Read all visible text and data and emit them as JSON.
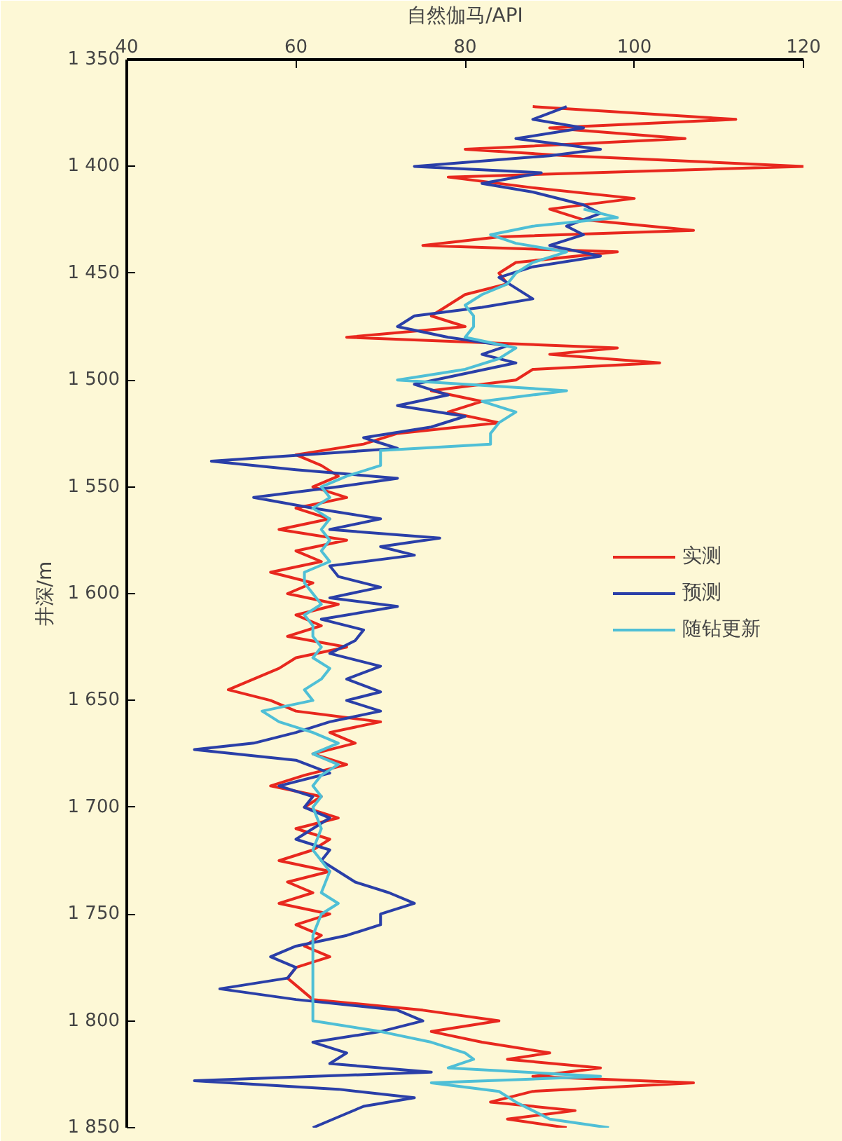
{
  "chart_data": {
    "type": "line",
    "xlabel": "自然伽马/API",
    "ylabel": "井深/m",
    "xlim": [
      40,
      120
    ],
    "xticks": [
      40,
      60,
      80,
      100,
      120
    ],
    "ylim": [
      1850,
      1350
    ],
    "yticks": [
      {
        "value": 1350,
        "label": "1 350"
      },
      {
        "value": 1400,
        "label": "1 400"
      },
      {
        "value": 1450,
        "label": "1 450"
      },
      {
        "value": 1500,
        "label": "1 500"
      },
      {
        "value": 1550,
        "label": "1 550"
      },
      {
        "value": 1600,
        "label": "1 600"
      },
      {
        "value": 1650,
        "label": "1 650"
      },
      {
        "value": 1700,
        "label": "1 700"
      },
      {
        "value": 1750,
        "label": "1 750"
      },
      {
        "value": 1800,
        "label": "1 800"
      },
      {
        "value": 1850,
        "label": "1 850"
      }
    ],
    "grid": false,
    "legend": "right",
    "marker": "none",
    "line_style": "solid",
    "series": [
      {
        "name": "实测",
        "color": "#e8281e",
        "x": [
          88,
          112,
          90,
          106,
          80,
          92,
          120,
          95,
          78,
          88,
          100,
          90,
          94,
          107,
          84,
          75,
          98,
          86,
          84,
          85,
          80,
          78,
          76,
          80,
          66,
          98,
          90,
          103,
          88,
          86,
          76,
          82,
          78,
          84,
          72,
          68,
          60,
          63,
          65,
          62,
          66,
          60,
          64,
          58,
          66,
          60,
          63,
          57,
          62,
          59,
          65,
          60,
          63,
          59,
          66,
          60,
          58,
          55,
          52,
          57,
          60,
          70,
          64,
          67,
          62,
          66,
          61,
          57,
          63,
          61,
          65,
          60,
          64,
          62,
          58,
          64,
          59,
          62,
          58,
          64,
          60,
          63,
          61,
          64,
          60,
          59,
          62,
          75,
          84,
          76,
          82,
          90,
          85,
          96,
          88,
          107,
          88,
          83,
          93,
          85,
          92
        ],
        "values": [
          1372,
          1378,
          1382,
          1387,
          1392,
          1395,
          1400,
          1403,
          1405,
          1410,
          1415,
          1420,
          1425,
          1430,
          1433,
          1437,
          1440,
          1445,
          1450,
          1455,
          1460,
          1465,
          1470,
          1475,
          1480,
          1485,
          1488,
          1492,
          1495,
          1500,
          1505,
          1510,
          1515,
          1520,
          1525,
          1530,
          1535,
          1540,
          1545,
          1550,
          1555,
          1560,
          1565,
          1570,
          1575,
          1580,
          1585,
          1590,
          1595,
          1600,
          1605,
          1610,
          1615,
          1620,
          1625,
          1630,
          1635,
          1640,
          1645,
          1650,
          1655,
          1660,
          1665,
          1670,
          1675,
          1680,
          1685,
          1690,
          1695,
          1700,
          1705,
          1710,
          1715,
          1720,
          1725,
          1730,
          1735,
          1740,
          1745,
          1750,
          1755,
          1760,
          1765,
          1770,
          1775,
          1780,
          1790,
          1795,
          1800,
          1805,
          1810,
          1815,
          1818,
          1822,
          1826,
          1829,
          1833,
          1838,
          1842,
          1846,
          1850
        ]
      },
      {
        "name": "预测",
        "color": "#2a3fa8",
        "x": [
          92,
          88,
          94,
          86,
          96,
          90,
          74,
          89,
          82,
          88,
          94,
          96,
          92,
          94,
          90,
          96,
          88,
          84,
          86,
          88,
          82,
          74,
          72,
          78,
          85,
          82,
          86,
          80,
          74,
          78,
          72,
          80,
          76,
          68,
          72,
          50,
          60,
          72,
          65,
          55,
          62,
          70,
          64,
          77,
          70,
          74,
          64,
          65,
          70,
          64,
          72,
          63,
          68,
          67,
          64,
          70,
          66,
          70,
          66,
          70,
          64,
          60,
          55,
          48,
          60,
          64,
          58,
          62,
          61,
          64,
          62,
          60,
          64,
          63,
          65,
          67,
          71,
          74,
          70,
          70,
          66,
          60,
          57,
          60,
          59,
          51,
          60,
          72,
          75,
          70,
          62,
          66,
          64,
          76,
          48,
          65,
          74,
          68,
          65,
          62
        ],
        "values": [
          1372,
          1378,
          1382,
          1387,
          1392,
          1395,
          1400,
          1403,
          1408,
          1412,
          1418,
          1422,
          1428,
          1432,
          1437,
          1442,
          1447,
          1452,
          1457,
          1462,
          1466,
          1470,
          1475,
          1480,
          1484,
          1488,
          1492,
          1497,
          1502,
          1507,
          1512,
          1517,
          1522,
          1527,
          1532,
          1538,
          1542,
          1546,
          1550,
          1555,
          1560,
          1565,
          1570,
          1574,
          1578,
          1582,
          1587,
          1592,
          1597,
          1602,
          1606,
          1612,
          1617,
          1622,
          1628,
          1634,
          1640,
          1646,
          1650,
          1655,
          1660,
          1665,
          1670,
          1673,
          1678,
          1684,
          1690,
          1695,
          1700,
          1705,
          1710,
          1715,
          1720,
          1725,
          1730,
          1735,
          1740,
          1745,
          1750,
          1755,
          1760,
          1765,
          1770,
          1775,
          1780,
          1785,
          1790,
          1795,
          1800,
          1805,
          1810,
          1815,
          1820,
          1824,
          1828,
          1832,
          1836,
          1840,
          1845,
          1850
        ]
      },
      {
        "name": "随钻更新",
        "color": "#4fbfd6",
        "x": [
          94,
          98,
          88,
          83,
          86,
          92,
          88,
          86,
          85,
          82,
          80,
          81,
          81,
          80,
          86,
          84,
          80,
          72,
          92,
          82,
          86,
          84,
          83,
          83,
          70,
          70,
          66,
          63,
          64,
          62,
          64,
          63,
          64,
          63,
          64,
          61,
          61,
          62,
          63,
          61,
          62,
          62,
          63,
          62,
          64,
          63,
          61,
          62,
          56,
          58,
          62,
          65,
          62,
          65,
          63,
          62,
          63,
          62,
          63,
          62,
          64,
          63,
          65,
          63,
          62,
          62,
          62,
          62,
          62,
          70,
          76,
          80,
          81,
          78,
          96,
          76,
          84,
          86,
          88,
          90,
          97
        ],
        "values": [
          1420,
          1424,
          1428,
          1432,
          1436,
          1440,
          1445,
          1450,
          1455,
          1460,
          1465,
          1470,
          1475,
          1480,
          1485,
          1490,
          1495,
          1500,
          1505,
          1510,
          1515,
          1520,
          1525,
          1530,
          1533,
          1540,
          1545,
          1550,
          1555,
          1560,
          1565,
          1570,
          1575,
          1580,
          1585,
          1590,
          1595,
          1600,
          1605,
          1610,
          1615,
          1620,
          1625,
          1630,
          1635,
          1640,
          1645,
          1650,
          1655,
          1660,
          1665,
          1670,
          1675,
          1680,
          1685,
          1690,
          1695,
          1700,
          1710,
          1720,
          1730,
          1740,
          1745,
          1750,
          1760,
          1770,
          1780,
          1790,
          1800,
          1805,
          1810,
          1815,
          1818,
          1822,
          1826,
          1829,
          1833,
          1838,
          1842,
          1846,
          1850
        ]
      }
    ]
  }
}
